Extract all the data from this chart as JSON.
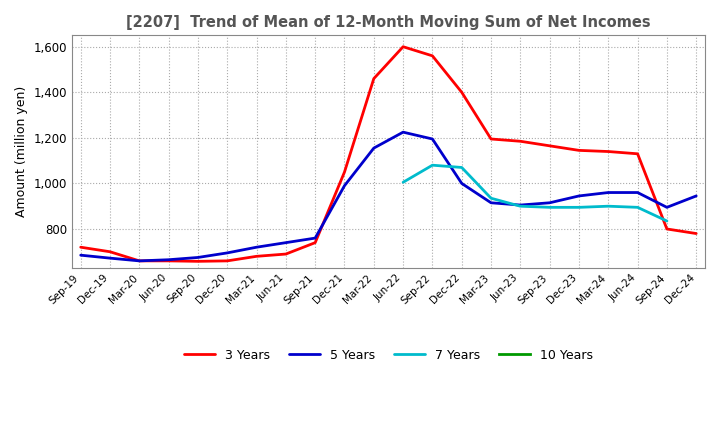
{
  "title": "[2207]  Trend of Mean of 12-Month Moving Sum of Net Incomes",
  "ylabel": "Amount (million yen)",
  "ylim": [
    630,
    1650
  ],
  "yticks": [
    800,
    1000,
    1200,
    1400,
    1600
  ],
  "background_color": "#ffffff",
  "grid_color": "#aaaaaa",
  "legend_entries": [
    "3 Years",
    "5 Years",
    "7 Years",
    "10 Years"
  ],
  "line_colors": [
    "#ff0000",
    "#0000cc",
    "#00bbcc",
    "#009900"
  ],
  "x_labels": [
    "Sep-19",
    "Dec-19",
    "Mar-20",
    "Jun-20",
    "Sep-20",
    "Dec-20",
    "Mar-21",
    "Jun-21",
    "Sep-21",
    "Dec-21",
    "Mar-22",
    "Jun-22",
    "Sep-22",
    "Dec-22",
    "Mar-23",
    "Jun-23",
    "Sep-23",
    "Dec-23",
    "Mar-24",
    "Jun-24",
    "Sep-24",
    "Dec-24"
  ],
  "series_3yr": [
    720,
    700,
    660,
    660,
    658,
    660,
    680,
    690,
    740,
    1050,
    1460,
    1600,
    1560,
    1400,
    1195,
    1185,
    1165,
    1145,
    1140,
    1130,
    800,
    780
  ],
  "series_5yr": [
    685,
    672,
    660,
    665,
    675,
    695,
    720,
    740,
    760,
    990,
    1155,
    1225,
    1195,
    1000,
    915,
    905,
    915,
    945,
    960,
    960,
    895,
    945
  ],
  "series_7yr": [
    null,
    null,
    null,
    null,
    null,
    null,
    null,
    null,
    null,
    null,
    null,
    1005,
    1080,
    1070,
    935,
    900,
    895,
    895,
    900,
    895,
    835,
    null
  ],
  "series_10yr": [
    null,
    null,
    null,
    null,
    null,
    null,
    null,
    null,
    null,
    null,
    null,
    null,
    null,
    null,
    null,
    null,
    null,
    null,
    null,
    null,
    null,
    null
  ]
}
